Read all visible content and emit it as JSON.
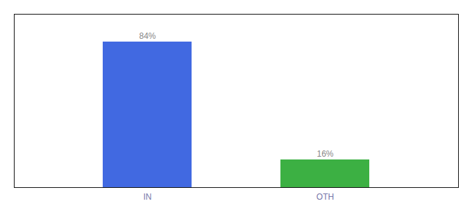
{
  "chart_data": {
    "type": "bar",
    "categories": [
      "IN",
      "OTH"
    ],
    "values": [
      84,
      16
    ],
    "value_labels": [
      "84%",
      "16%"
    ],
    "colors": [
      "#4169e1",
      "#3cb043"
    ],
    "ylim": [
      0,
      100
    ],
    "data_labels": true,
    "tick_labels": "x",
    "grid": false
  }
}
